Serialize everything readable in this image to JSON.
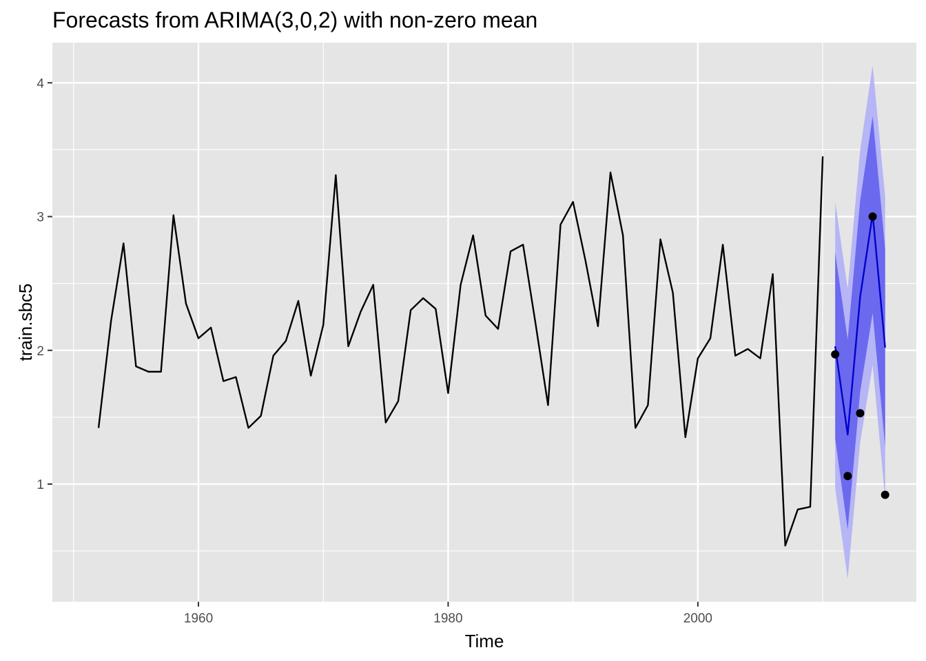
{
  "chart_data": {
    "type": "line",
    "title": "Forecasts from ARIMA(3,0,2) with non-zero mean",
    "xlabel": "Time",
    "ylabel": "train.sbc5",
    "xlim": [
      1948.3,
      2017.5
    ],
    "ylim": [
      0.12,
      4.3
    ],
    "x_ticks": [
      1960,
      1980,
      2000
    ],
    "x_tick_labels": [
      "1960",
      "1980",
      "2000"
    ],
    "y_ticks": [
      1,
      2,
      3,
      4
    ],
    "y_tick_labels": [
      "1",
      "2",
      "3",
      "4"
    ],
    "x_minor_ticks": [
      1950,
      1970,
      1990,
      2010
    ],
    "y_minor_ticks": [
      0.5,
      1.5,
      2.5,
      3.5
    ],
    "grid": true,
    "legend": "none",
    "colors": {
      "panel": "#e5e5e5",
      "grid": "#ffffff",
      "history_line": "#000000",
      "forecast_line": "#0000cc",
      "interval_80": "#6b69ee",
      "interval_95": "#b6b5f6",
      "test_points": "#000000"
    },
    "series": [
      {
        "role": "history",
        "x": [
          1952,
          1953,
          1954,
          1955,
          1956,
          1957,
          1958,
          1959,
          1960,
          1961,
          1962,
          1963,
          1964,
          1965,
          1966,
          1967,
          1968,
          1969,
          1970,
          1971,
          1972,
          1973,
          1974,
          1975,
          1976,
          1977,
          1978,
          1979,
          1980,
          1981,
          1982,
          1983,
          1984,
          1985,
          1986,
          1987,
          1988,
          1989,
          1990,
          1991,
          1992,
          1993,
          1994,
          1995,
          1996,
          1997,
          1998,
          1999,
          2000,
          2001,
          2002,
          2003,
          2004,
          2005,
          2006,
          2007,
          2008,
          2009,
          2010
        ],
        "values": [
          1.42,
          2.22,
          2.8,
          1.88,
          1.84,
          1.84,
          3.01,
          2.35,
          2.09,
          2.17,
          1.77,
          1.8,
          1.42,
          1.51,
          1.96,
          2.07,
          2.37,
          1.81,
          2.19,
          3.31,
          2.03,
          2.29,
          2.49,
          1.46,
          1.62,
          2.3,
          2.39,
          2.31,
          1.68,
          2.49,
          2.86,
          2.26,
          2.16,
          2.74,
          2.79,
          2.2,
          1.59,
          2.94,
          3.11,
          2.67,
          2.18,
          3.33,
          2.86,
          1.42,
          1.59,
          2.83,
          2.43,
          1.35,
          1.94,
          2.09,
          2.79,
          1.96,
          2.01,
          1.94,
          2.57,
          0.54,
          0.81,
          0.83,
          3.45
        ]
      },
      {
        "role": "forecast_mean",
        "x": [
          2011,
          2012,
          2013,
          2014,
          2015
        ],
        "values": [
          2.03,
          1.37,
          2.4,
          3.02,
          2.02
        ]
      },
      {
        "role": "interval_80",
        "x": [
          2011,
          2012,
          2013,
          2014,
          2015
        ],
        "lower": [
          1.34,
          0.66,
          1.69,
          2.28,
          1.28
        ],
        "upper": [
          2.73,
          2.08,
          3.12,
          3.75,
          2.76
        ]
      },
      {
        "role": "interval_95",
        "x": [
          2011,
          2012,
          2013,
          2014,
          2015
        ],
        "lower": [
          0.97,
          0.29,
          1.31,
          1.89,
          0.89
        ],
        "upper": [
          3.11,
          2.46,
          3.5,
          4.13,
          3.15
        ]
      },
      {
        "role": "test_points",
        "x": [
          2011,
          2012,
          2013,
          2014,
          2015
        ],
        "values": [
          1.97,
          1.06,
          1.53,
          3.0,
          0.92
        ]
      }
    ]
  }
}
